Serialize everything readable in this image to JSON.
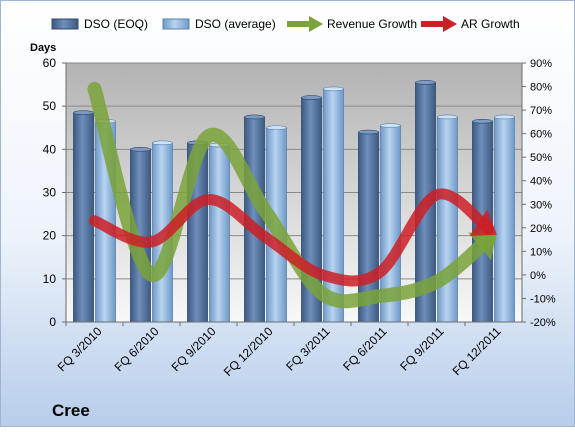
{
  "chart_data": {
    "type": "bar",
    "company": "Cree",
    "y_left_title": "Days",
    "y_left_lim": [
      0,
      60
    ],
    "y_left_ticks": [
      "0",
      "10",
      "20",
      "30",
      "40",
      "50",
      "60"
    ],
    "y_right_lim": [
      -20,
      90
    ],
    "y_right_ticks": [
      "-20%",
      "-10%",
      "0%",
      "10%",
      "20%",
      "30%",
      "40%",
      "50%",
      "60%",
      "70%",
      "80%",
      "90%"
    ],
    "categories": [
      "FQ 3/2010",
      "FQ 6/2010",
      "FQ 9/2010",
      "FQ 12/2010",
      "FQ 3/2011",
      "FQ 6/2011",
      "FQ 9/2011",
      "FQ 12/2011"
    ],
    "bar_series": [
      {
        "name": "DSO (EOQ)",
        "axis": "left",
        "color": "#4e6f9a",
        "values": [
          48.5,
          40,
          41.5,
          47.5,
          52,
          44,
          55.5,
          46.5
        ]
      },
      {
        "name": "DSO (average)",
        "axis": "left",
        "color": "#8fb4db",
        "values": [
          46.5,
          41.5,
          41,
          45,
          54,
          45.5,
          47.5,
          47.5
        ]
      }
    ],
    "line_series": [
      {
        "name": "Revenue Growth",
        "axis": "right",
        "color": "#7aa33a",
        "values": [
          79,
          0,
          59,
          27,
          -8,
          -9,
          -3,
          17
        ]
      },
      {
        "name": "AR Growth",
        "axis": "right",
        "color": "#cc1f25",
        "values": [
          23,
          14,
          32,
          16,
          0,
          1,
          34,
          18
        ]
      }
    ],
    "legend_position": "top",
    "grid": true
  }
}
